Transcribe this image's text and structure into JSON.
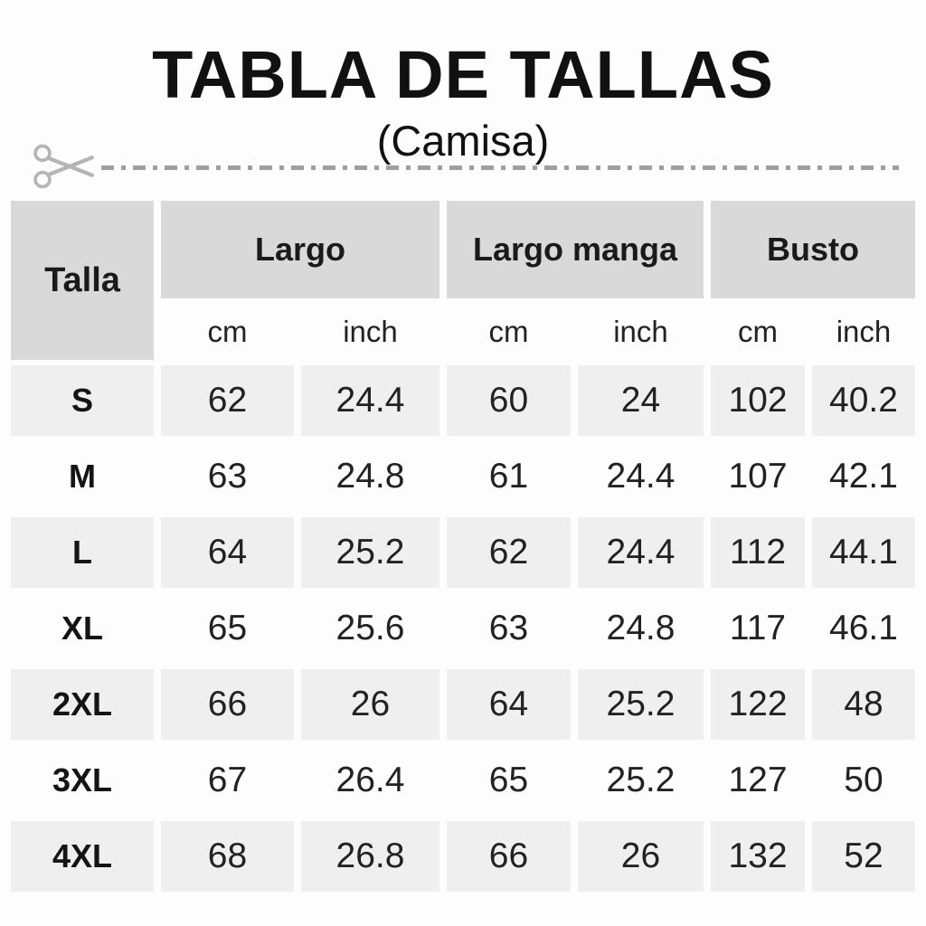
{
  "header": {
    "title": "TABLA DE TALLAS",
    "subtitle": "(Camisa)",
    "cut_line_icon": "scissors-icon"
  },
  "table": {
    "size_column_header": "Talla",
    "groups": [
      {
        "label": "Largo"
      },
      {
        "label": "Largo manga"
      },
      {
        "label": "Busto"
      }
    ],
    "unit_headers": [
      "cm",
      "inch",
      "cm",
      "inch",
      "cm",
      "inch"
    ],
    "rows": [
      {
        "size": "S",
        "values": [
          "62",
          "24.4",
          "60",
          "24",
          "102",
          "40.2"
        ]
      },
      {
        "size": "M",
        "values": [
          "63",
          "24.8",
          "61",
          "24.4",
          "107",
          "42.1"
        ]
      },
      {
        "size": "L",
        "values": [
          "64",
          "25.2",
          "62",
          "24.4",
          "112",
          "44.1"
        ]
      },
      {
        "size": "XL",
        "values": [
          "65",
          "25.6",
          "63",
          "24.8",
          "117",
          "46.1"
        ]
      },
      {
        "size": "2XL",
        "values": [
          "66",
          "26",
          "64",
          "25.2",
          "122",
          "48"
        ]
      },
      {
        "size": "3XL",
        "values": [
          "67",
          "26.4",
          "65",
          "25.2",
          "127",
          "50"
        ]
      },
      {
        "size": "4XL",
        "values": [
          "68",
          "26.8",
          "66",
          "26",
          "132",
          "52"
        ]
      }
    ]
  },
  "colors": {
    "header_cell_bg": "#d9d9d9",
    "stripe_row_bg": "#efefef",
    "cut_line_gray": "#9e9e9e",
    "scissors_gray": "#b5b5b5",
    "text_black": "#111111",
    "page_bg": "#fdfdfd"
  }
}
